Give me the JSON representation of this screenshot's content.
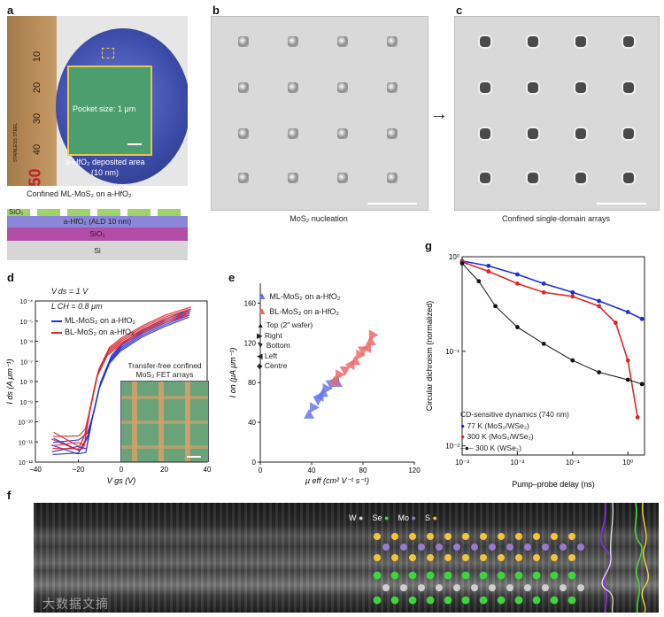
{
  "panels": {
    "a": {
      "label": "a",
      "pocket_text": "Pocket size: 1 μm",
      "deposit_text_line1": "a-HfO₂ deposited area",
      "deposit_text_line2": "(10 nm)",
      "ruler_marks": [
        "10",
        "20",
        "30",
        "40",
        "50"
      ],
      "ruler_small": "STAINLESS STEEL",
      "stack": {
        "top_label": "Confined ML-MoS₂ on a-HfO₂",
        "sio2_top": "SiO₂",
        "hfo2": "a-HfO₂ (ALD 10 nm)",
        "sio2": "SiO₂",
        "si": "Si"
      }
    },
    "b": {
      "label": "b",
      "caption": "MoS₂ nucleation"
    },
    "c": {
      "label": "c",
      "caption": "Confined single-domain arrays"
    },
    "d": {
      "label": "d",
      "vds": "V ds = 1 V",
      "lch": "L CH = 0.8 μm",
      "legend": [
        "ML-MoS₂ on a-HfO₂",
        "BL-MoS₂ on a-HfO₂"
      ],
      "inset_title1": "Transfer-free confined",
      "inset_title2": "MoS₂ FET arrays",
      "ylabel": "I ds (A μm⁻¹)",
      "xlabel": "V gs (V)",
      "yticks": [
        "10⁻⁴",
        "10⁻⁵",
        "10⁻⁶",
        "10⁻⁷",
        "10⁻⁸",
        "10⁻⁹",
        "10⁻¹⁰",
        "10⁻¹¹",
        "10⁻¹²"
      ],
      "xticks": [
        "−40",
        "−20",
        "0",
        "20",
        "40"
      ]
    },
    "e": {
      "label": "e",
      "legend": [
        "ML-MoS₂ on a-HfO₂",
        "BL-MoS₂ on a-HfO₂"
      ],
      "markers": [
        "Top (2\" wafer)",
        "Right",
        "Bottom",
        "Left",
        "Centre"
      ],
      "ylabel": "I on (μA μm⁻¹)",
      "xlabel": "μ eff (cm² V⁻¹ s⁻¹)",
      "yticks": [
        "0",
        "40",
        "80",
        "120",
        "160"
      ],
      "xticks": [
        "0",
        "40",
        "80",
        "120"
      ]
    },
    "f": {
      "label": "f",
      "atoms": [
        "W",
        "Se",
        "Mo",
        "S"
      ],
      "watermark": "大数据文摘"
    },
    "g": {
      "label": "g",
      "ylabel": "Circular dichroism (normalized)",
      "xlabel": "Pump–probe delay (ns)",
      "legend_title": "CD-sensitive dynamics (740 nm)",
      "legend": [
        "77 K  (MoS₂/WSe₂)",
        "300 K (MoS₂/WSe₂)",
        "300 K (WSe₂)"
      ],
      "yticks": [
        "10⁰",
        "10⁻¹",
        "10⁻²"
      ],
      "xticks": [
        "10⁻³",
        "10⁻²",
        "10⁻¹",
        "10⁰"
      ]
    }
  },
  "colors": {
    "blue": "#1f2fd6",
    "red": "#e0262a",
    "black": "#111111",
    "tri_blue": "#6a77ee",
    "tri_red": "#ef6a6a"
  },
  "chart_data": [
    {
      "type": "line",
      "title": "d",
      "xlabel": "Vgs (V)",
      "ylabel": "Ids (A μm⁻¹)",
      "xlim": [
        -40,
        40
      ],
      "ylim_log10": [
        -12,
        -4
      ],
      "series": [
        {
          "name": "ML-MoS₂ on a-HfO₂",
          "x": [
            -32,
            -20,
            -16,
            -13,
            -10,
            -5,
            0,
            10,
            20,
            32
          ],
          "log10_y": [
            -11.3,
            -11.3,
            -11.0,
            -9.6,
            -8.2,
            -6.9,
            -6.3,
            -5.6,
            -5.1,
            -4.6
          ]
        },
        {
          "name": "BL-MoS₂ on a-HfO₂",
          "x": [
            -32,
            -20,
            -17,
            -14,
            -11,
            -6,
            0,
            10,
            20,
            32
          ],
          "log10_y": [
            -11.0,
            -11.1,
            -10.8,
            -9.1,
            -7.6,
            -6.5,
            -6.0,
            -5.4,
            -4.9,
            -4.5
          ]
        }
      ]
    },
    {
      "type": "scatter",
      "title": "e",
      "xlabel": "μeff (cm² V⁻¹ s⁻¹)",
      "ylabel": "Ion (μA μm⁻¹)",
      "xlim": [
        0,
        120
      ],
      "ylim": [
        0,
        180
      ],
      "series": [
        {
          "name": "ML-MoS₂ on a-HfO₂",
          "x": [
            38,
            42,
            45,
            46,
            49,
            52,
            55,
            58,
            60
          ],
          "y": [
            48,
            55,
            62,
            66,
            70,
            74,
            78,
            82,
            80
          ]
        },
        {
          "name": "BL-MoS₂ on a-HfO₂",
          "x": [
            58,
            62,
            66,
            70,
            74,
            78,
            80,
            83,
            86,
            88
          ],
          "y": [
            82,
            88,
            92,
            98,
            102,
            108,
            112,
            115,
            122,
            128
          ]
        }
      ]
    },
    {
      "type": "scatter",
      "title": "g",
      "xlabel": "Pump–probe delay (ns)",
      "ylabel": "Circular dichroism (normalized)",
      "xscale": "log",
      "yscale": "log",
      "xlim": [
        0.001,
        2.0
      ],
      "ylim": [
        0.008,
        1.0
      ],
      "series": [
        {
          "name": "77 K (MoS₂/WSe₂)",
          "x": [
            0.001,
            0.003,
            0.01,
            0.03,
            0.1,
            0.3,
            1.0,
            1.8
          ],
          "y": [
            0.9,
            0.8,
            0.65,
            0.52,
            0.42,
            0.34,
            0.26,
            0.22
          ]
        },
        {
          "name": "300 K (MoS₂/WSe₂)",
          "x": [
            0.001,
            0.003,
            0.01,
            0.03,
            0.1,
            0.3,
            0.6,
            1.0,
            1.5
          ],
          "y": [
            0.88,
            0.7,
            0.52,
            0.42,
            0.38,
            0.3,
            0.2,
            0.08,
            0.02
          ]
        },
        {
          "name": "300 K (WSe₂)",
          "x": [
            0.001,
            0.002,
            0.004,
            0.01,
            0.03,
            0.1,
            0.3,
            1.0,
            1.8
          ],
          "y": [
            0.85,
            0.55,
            0.3,
            0.18,
            0.12,
            0.08,
            0.06,
            0.05,
            0.045
          ]
        }
      ]
    }
  ]
}
